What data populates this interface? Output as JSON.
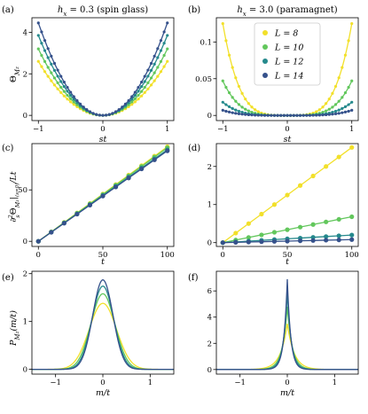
{
  "colors": {
    "L8": "#f2e02a",
    "L10": "#62c75c",
    "L12": "#25898c",
    "L14": "#35518b",
    "axis": "#000000",
    "legend_border": "#cccccc"
  },
  "legend": {
    "entries": [
      "L = 8",
      "L = 10",
      "L = 12",
      "L = 14"
    ],
    "placement": "top-center of panel (b)"
  },
  "chart_data": [
    {
      "panel": "(a)",
      "type": "line",
      "title": "h_x = 0.3 (spin glass)",
      "title_parts": [
        "h",
        "x",
        " = 0.3 (spin glass)"
      ],
      "ylabel": "Θ_{M_z}",
      "ylabel_parts": [
        "Θ",
        "M",
        "z"
      ],
      "xlabel": "st",
      "xlim": [
        -1.1,
        1.1
      ],
      "ylim": [
        -0.25,
        4.7
      ],
      "xticks": [
        -1,
        0,
        1
      ],
      "yticks": [
        0,
        2,
        4
      ],
      "model": "quadratic",
      "x_points": [
        -1,
        -0.95,
        -0.9,
        -0.85,
        -0.8,
        -0.75,
        -0.7,
        -0.65,
        -0.6,
        -0.55,
        -0.5,
        -0.45,
        -0.4,
        -0.35,
        -0.3,
        -0.25,
        -0.2,
        -0.15,
        -0.1,
        -0.05,
        0,
        0.05,
        0.1,
        0.15,
        0.2,
        0.25,
        0.3,
        0.35,
        0.4,
        0.45,
        0.5,
        0.55,
        0.6,
        0.65,
        0.7,
        0.75,
        0.8,
        0.85,
        0.9,
        0.95,
        1
      ],
      "series": [
        {
          "name": "L = 8",
          "coef": 2.6
        },
        {
          "name": "L = 10",
          "coef": 3.2
        },
        {
          "name": "L = 12",
          "coef": 3.85
        },
        {
          "name": "L = 14",
          "coef": 4.45
        }
      ]
    },
    {
      "panel": "(b)",
      "type": "line",
      "title": "h_x = 3.0 (paramagnet)",
      "title_parts": [
        "h",
        "x",
        " = 3.0 (paramagnet)"
      ],
      "xlabel": "st",
      "xlim": [
        -1.1,
        1.1
      ],
      "ylim": [
        -0.007,
        0.133
      ],
      "xticks": [
        -1,
        0,
        1
      ],
      "yticks": [
        0,
        0.05,
        0.1
      ],
      "model": "quartic",
      "x_points": [
        -1,
        -0.95,
        -0.9,
        -0.85,
        -0.8,
        -0.75,
        -0.7,
        -0.65,
        -0.6,
        -0.55,
        -0.5,
        -0.45,
        -0.4,
        -0.35,
        -0.3,
        -0.25,
        -0.2,
        -0.15,
        -0.1,
        -0.05,
        0,
        0.05,
        0.1,
        0.15,
        0.2,
        0.25,
        0.3,
        0.35,
        0.4,
        0.45,
        0.5,
        0.55,
        0.6,
        0.65,
        0.7,
        0.75,
        0.8,
        0.85,
        0.9,
        0.95,
        1
      ],
      "series": [
        {
          "name": "L = 8",
          "coef": 0.125
        },
        {
          "name": "L = 10",
          "coef": 0.047
        },
        {
          "name": "L = 12",
          "coef": 0.018
        },
        {
          "name": "L = 14",
          "coef": 0.007
        }
      ]
    },
    {
      "panel": "(c)",
      "type": "line",
      "ylabel": "∂²_s Θ_{M_z}|_{s=0} / Lt",
      "ylabel_parts": [
        "∂",
        "s",
        "2",
        "Θ",
        "M",
        "z",
        "|",
        "(s=0)",
        "/Lt"
      ],
      "xlabel": "t",
      "xlim": [
        -5,
        105
      ],
      "ylim": [
        -5,
        95
      ],
      "xticks": [
        0,
        50,
        100
      ],
      "yticks": [
        0,
        50
      ],
      "x": [
        0,
        10,
        20,
        30,
        40,
        50,
        60,
        70,
        80,
        90,
        100
      ],
      "series": [
        {
          "name": "L = 8",
          "values": [
            0,
            9.2,
            18.4,
            27.6,
            36.8,
            46,
            55.2,
            64.4,
            73.6,
            82.8,
            92
          ]
        },
        {
          "name": "L = 10",
          "values": [
            0,
            9.1,
            18.2,
            27.3,
            36.4,
            45.5,
            54.6,
            63.7,
            72.8,
            81.9,
            91
          ]
        },
        {
          "name": "L = 12",
          "values": [
            0,
            8.9,
            17.8,
            26.7,
            35.6,
            44.5,
            53.4,
            62.3,
            71.2,
            80.1,
            89
          ]
        },
        {
          "name": "L = 14",
          "values": [
            0,
            8.8,
            17.6,
            26.4,
            35.2,
            44,
            52.8,
            61.6,
            70.4,
            79.2,
            88
          ]
        }
      ]
    },
    {
      "panel": "(d)",
      "type": "line",
      "xlabel": "t",
      "xlim": [
        -5,
        105
      ],
      "ylim": [
        -0.1,
        2.6
      ],
      "xticks": [
        0,
        50,
        100
      ],
      "yticks": [
        0,
        1,
        2
      ],
      "x": [
        0,
        10,
        20,
        30,
        40,
        50,
        60,
        70,
        80,
        90,
        100
      ],
      "series": [
        {
          "name": "L = 8",
          "values": [
            0,
            0.25,
            0.5,
            0.75,
            1,
            1.25,
            1.5,
            1.75,
            2,
            2.25,
            2.5
          ]
        },
        {
          "name": "L = 10",
          "values": [
            0,
            0.068,
            0.136,
            0.204,
            0.272,
            0.34,
            0.408,
            0.476,
            0.544,
            0.612,
            0.68
          ]
        },
        {
          "name": "L = 12",
          "values": [
            0,
            0.02,
            0.04,
            0.06,
            0.08,
            0.1,
            0.12,
            0.14,
            0.16,
            0.18,
            0.2
          ]
        },
        {
          "name": "L = 14",
          "values": [
            0,
            0.008,
            0.016,
            0.024,
            0.032,
            0.04,
            0.048,
            0.056,
            0.064,
            0.072,
            0.08
          ]
        }
      ]
    },
    {
      "panel": "(e)",
      "type": "line",
      "ylabel": "P_{M_z}(m/t)",
      "ylabel_parts": [
        "P",
        "M",
        "z",
        "(m/t)"
      ],
      "xlabel": "m/t",
      "xlim": [
        -1.5,
        1.5
      ],
      "ylim": [
        -0.1,
        2.05
      ],
      "xticks": [
        -1,
        0,
        1
      ],
      "yticks": [
        0,
        1,
        2
      ],
      "model": "gaussian",
      "series": [
        {
          "name": "L = 8",
          "peak": 1.38
        },
        {
          "name": "L = 10",
          "peak": 1.58
        },
        {
          "name": "L = 12",
          "peak": 1.74
        },
        {
          "name": "L = 14",
          "peak": 1.87
        }
      ]
    },
    {
      "panel": "(f)",
      "type": "line",
      "xlabel": "m/t",
      "xlim": [
        -1.5,
        1.5
      ],
      "ylim": [
        -0.35,
        7.5
      ],
      "xticks": [
        -1,
        0,
        1
      ],
      "yticks": [
        0,
        2,
        4,
        6
      ],
      "model": "laplace",
      "series": [
        {
          "name": "L = 8",
          "peak": 3.5
        },
        {
          "name": "L = 10",
          "peak": 4.8
        },
        {
          "name": "L = 12",
          "peak": 5.9
        },
        {
          "name": "L = 14",
          "peak": 6.9
        }
      ]
    }
  ]
}
